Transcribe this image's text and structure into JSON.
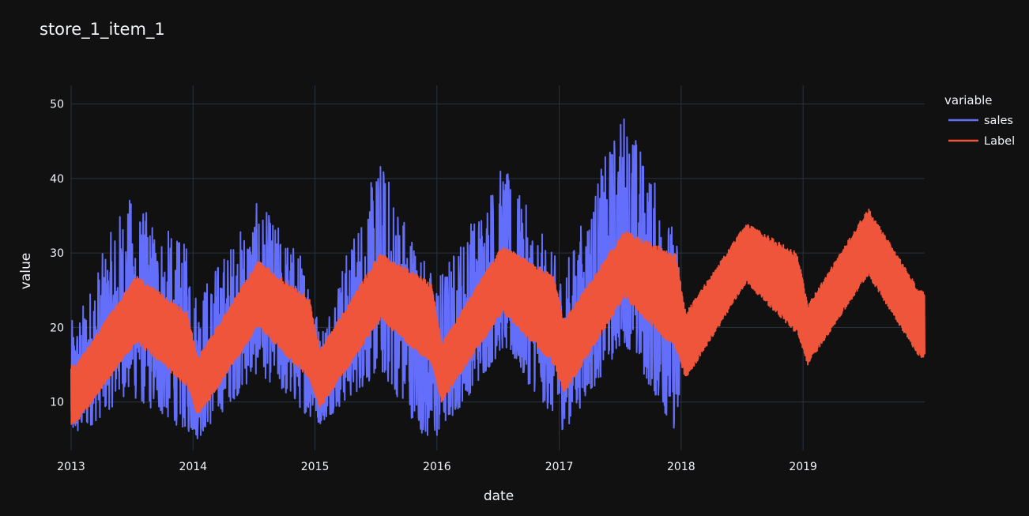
{
  "chart_data": {
    "type": "line",
    "title": "store_1_item_1",
    "xlabel": "date",
    "ylabel": "value",
    "x_ticks": [
      "2013",
      "2014",
      "2015",
      "2016",
      "2017",
      "2018",
      "2019"
    ],
    "y_ticks": [
      10,
      20,
      30,
      40,
      50
    ],
    "xlim": [
      "2013-01-01",
      "2019-12-31"
    ],
    "ylim": [
      3.5,
      52.5
    ],
    "grid": true,
    "legend": {
      "title": "variable",
      "placement": "right"
    },
    "series": [
      {
        "name": "sales",
        "color": "#636efa",
        "x_range": [
          "2013-01-01",
          "2017-12-31"
        ],
        "min": 4,
        "max": 50,
        "approx_daily_values_note_free": true,
        "envelope": [
          {
            "x": "2013-01",
            "low": 5,
            "high": 21
          },
          {
            "x": "2013-06",
            "low": 11,
            "high": 38
          },
          {
            "x": "2013-12",
            "low": 6,
            "high": 31
          },
          {
            "x": "2014-01",
            "low": 5,
            "high": 25
          },
          {
            "x": "2014-07",
            "low": 14,
            "high": 37
          },
          {
            "x": "2014-12",
            "low": 8,
            "high": 29
          },
          {
            "x": "2015-01",
            "low": 7,
            "high": 20
          },
          {
            "x": "2015-07",
            "low": 14,
            "high": 43
          },
          {
            "x": "2015-12",
            "low": 4,
            "high": 28
          },
          {
            "x": "2016-01",
            "low": 6,
            "high": 28
          },
          {
            "x": "2016-07",
            "low": 17,
            "high": 42
          },
          {
            "x": "2016-12",
            "low": 8,
            "high": 30
          },
          {
            "x": "2017-01",
            "low": 6,
            "high": 28
          },
          {
            "x": "2017-07",
            "low": 18,
            "high": 50
          },
          {
            "x": "2017-12",
            "low": 6,
            "high": 33
          }
        ]
      },
      {
        "name": "Label",
        "color": "#ef553b",
        "x_range": [
          "2013-01-01",
          "2019-12-31"
        ],
        "envelope": [
          {
            "x": "2013-01",
            "low": 7,
            "high": 15
          },
          {
            "x": "2013-07",
            "low": 18,
            "high": 27
          },
          {
            "x": "2013-12",
            "low": 12,
            "high": 22
          },
          {
            "x": "2014-01",
            "low": 8,
            "high": 16
          },
          {
            "x": "2014-07",
            "low": 20,
            "high": 29
          },
          {
            "x": "2014-12",
            "low": 13,
            "high": 24
          },
          {
            "x": "2015-01",
            "low": 9,
            "high": 17
          },
          {
            "x": "2015-07",
            "low": 21,
            "high": 30
          },
          {
            "x": "2015-12",
            "low": 15,
            "high": 26
          },
          {
            "x": "2016-01",
            "low": 10,
            "high": 18
          },
          {
            "x": "2016-07",
            "low": 22,
            "high": 31
          },
          {
            "x": "2016-12",
            "low": 15,
            "high": 27
          },
          {
            "x": "2017-01",
            "low": 11,
            "high": 21
          },
          {
            "x": "2017-07",
            "low": 24,
            "high": 33
          },
          {
            "x": "2017-12",
            "low": 17,
            "high": 30
          },
          {
            "x": "2018-01",
            "low": 13,
            "high": 22
          },
          {
            "x": "2018-07",
            "low": 26,
            "high": 34
          },
          {
            "x": "2018-12",
            "low": 19,
            "high": 30
          },
          {
            "x": "2019-01",
            "low": 15,
            "high": 23
          },
          {
            "x": "2019-07",
            "low": 27,
            "high": 36
          },
          {
            "x": "2019-12",
            "low": 16,
            "high": 25
          }
        ]
      }
    ]
  }
}
